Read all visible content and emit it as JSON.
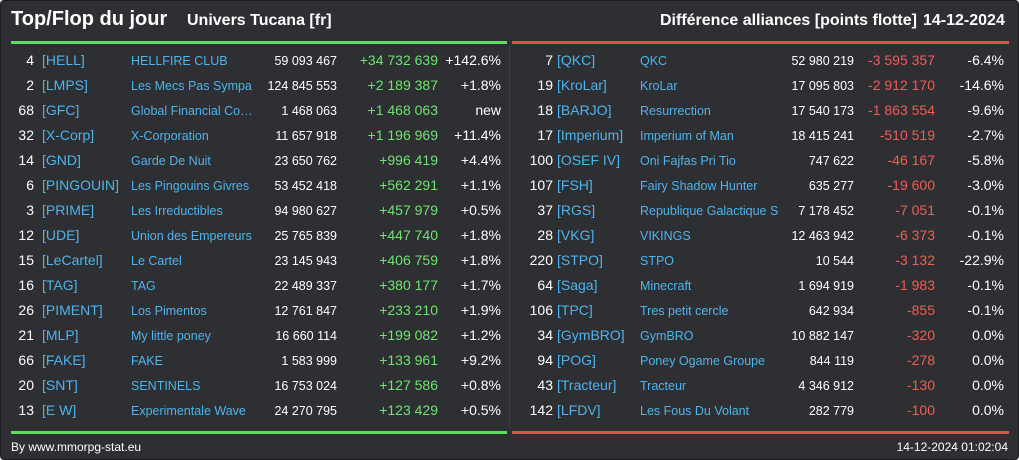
{
  "header": {
    "title": "Top/Flop du jour",
    "universe": "Univers Tucana [fr]",
    "subtitle": "Différence alliances [points flotte]",
    "date": "14-12-2024"
  },
  "top": [
    {
      "rank": "4",
      "tag": "[HELL]",
      "name": "HELLFIRE CLUB",
      "points": "59 093 467",
      "diff": "+34 732 639",
      "pct": "+142.6%"
    },
    {
      "rank": "2",
      "tag": "[LMPS]",
      "name": "Les Mecs Pas Sympa",
      "points": "124 845 553",
      "diff": "+2 189 387",
      "pct": "+1.8%"
    },
    {
      "rank": "68",
      "tag": "[GFC]",
      "name": "Global Financial Coa...",
      "points": "1 468 063",
      "diff": "+1 468 063",
      "pct": "new"
    },
    {
      "rank": "32",
      "tag": "[X-Corp]",
      "name": "X-Corporation",
      "points": "11 657 918",
      "diff": "+1 196 969",
      "pct": "+11.4%"
    },
    {
      "rank": "14",
      "tag": "[GND]",
      "name": "Garde De Nuit",
      "points": "23 650 762",
      "diff": "+996 419",
      "pct": "+4.4%"
    },
    {
      "rank": "6",
      "tag": "[PINGOUIN]",
      "name": "Les Pingouins Givres",
      "points": "53 452 418",
      "diff": "+562 291",
      "pct": "+1.1%"
    },
    {
      "rank": "3",
      "tag": "[PRIME]",
      "name": "Les Irreductibles",
      "points": "94 980 627",
      "diff": "+457 979",
      "pct": "+0.5%"
    },
    {
      "rank": "12",
      "tag": "[UDE]",
      "name": "Union des Empereurs",
      "points": "25 765 839",
      "diff": "+447 740",
      "pct": "+1.8%"
    },
    {
      "rank": "15",
      "tag": "[LeCartel]",
      "name": "Le Cartel",
      "points": "23 145 943",
      "diff": "+406 759",
      "pct": "+1.8%"
    },
    {
      "rank": "16",
      "tag": "[TAG]",
      "name": "TAG",
      "points": "22 489 337",
      "diff": "+380 177",
      "pct": "+1.7%"
    },
    {
      "rank": "26",
      "tag": "[PIMENT]",
      "name": "Los Pimentos",
      "points": "12 761 847",
      "diff": "+233 210",
      "pct": "+1.9%"
    },
    {
      "rank": "21",
      "tag": "[MLP]",
      "name": "My little poney",
      "points": "16 660 114",
      "diff": "+199 082",
      "pct": "+1.2%"
    },
    {
      "rank": "66",
      "tag": "[FAKE]",
      "name": "FAKE",
      "points": "1 583 999",
      "diff": "+133 961",
      "pct": "+9.2%"
    },
    {
      "rank": "20",
      "tag": "[SNT]",
      "name": "SENTINELS",
      "points": "16 753 024",
      "diff": "+127 586",
      "pct": "+0.8%"
    },
    {
      "rank": "13",
      "tag": "[E W]",
      "name": "Experimentale Wave",
      "points": "24 270 795",
      "diff": "+123 429",
      "pct": "+0.5%"
    }
  ],
  "flop": [
    {
      "rank": "7",
      "tag": "[QKC]",
      "name": "QKC",
      "points": "52 980 219",
      "diff": "-3 595 357",
      "pct": "-6.4%"
    },
    {
      "rank": "19",
      "tag": "[KroLar]",
      "name": "KroLar",
      "points": "17 095 803",
      "diff": "-2 912 170",
      "pct": "-14.6%"
    },
    {
      "rank": "18",
      "tag": "[BARJO]",
      "name": "Resurrection",
      "points": "17 540 173",
      "diff": "-1 863 554",
      "pct": "-9.6%"
    },
    {
      "rank": "17",
      "tag": "[Imperium]",
      "name": "Imperium of Man",
      "points": "18 415 241",
      "diff": "-510 519",
      "pct": "-2.7%"
    },
    {
      "rank": "100",
      "tag": "[OSEF IV]",
      "name": "Oni Fajfas Pri Tio",
      "points": "747 622",
      "diff": "-46 167",
      "pct": "-5.8%"
    },
    {
      "rank": "107",
      "tag": "[FSH]",
      "name": "Fairy Shadow Hunter",
      "points": "635 277",
      "diff": "-19 600",
      "pct": "-3.0%"
    },
    {
      "rank": "37",
      "tag": "[RGS]",
      "name": "Republique Galactique S",
      "points": "7 178 452",
      "diff": "-7 051",
      "pct": "-0.1%"
    },
    {
      "rank": "28",
      "tag": "[VKG]",
      "name": "VIKINGS",
      "points": "12 463 942",
      "diff": "-6 373",
      "pct": "-0.1%"
    },
    {
      "rank": "220",
      "tag": "[STPO]",
      "name": "STPO",
      "points": "10 544",
      "diff": "-3 132",
      "pct": "-22.9%"
    },
    {
      "rank": "64",
      "tag": "[Saga]",
      "name": "Minecraft",
      "points": "1 694 919",
      "diff": "-1 983",
      "pct": "-0.1%"
    },
    {
      "rank": "106",
      "tag": "[TPC]",
      "name": "Tres petit cercle",
      "points": "642 934",
      "diff": "-855",
      "pct": "-0.1%"
    },
    {
      "rank": "34",
      "tag": "[GymBRO]",
      "name": "GymBRO",
      "points": "10 882 147",
      "diff": "-320",
      "pct": "0.0%"
    },
    {
      "rank": "94",
      "tag": "[POG]",
      "name": "Poney Ogame Groupe",
      "points": "844 119",
      "diff": "-278",
      "pct": "0.0%"
    },
    {
      "rank": "43",
      "tag": "[Tracteur]",
      "name": "Tracteur",
      "points": "4 346 912",
      "diff": "-130",
      "pct": "0.0%"
    },
    {
      "rank": "142",
      "tag": "[LFDV]",
      "name": "Les Fous Du Volant",
      "points": "282 779",
      "diff": "-100",
      "pct": "0.0%"
    }
  ],
  "footer": {
    "source": "By www.mmorpg-stat.eu",
    "timestamp": "14-12-2024 01:02:04"
  },
  "colors": {
    "background": "#2e2f33",
    "positive": "#6fe36f",
    "negative": "#f05c58",
    "link": "#4fb3ec",
    "top_line": "#5fdc5f",
    "flop_line": "#e0504a"
  }
}
